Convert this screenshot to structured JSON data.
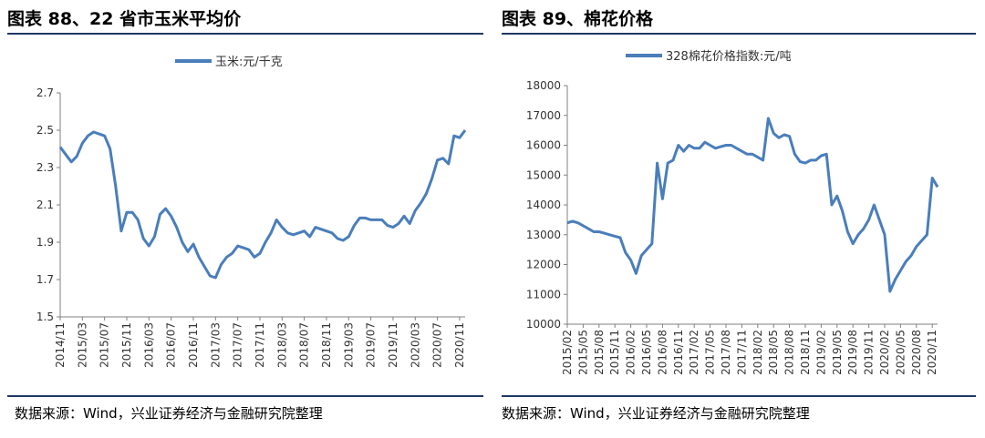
{
  "charts": [
    {
      "figure_title": "图表 88、22 省市玉米平均价",
      "source": "数据来源：Wind，兴业证券经济与金融研究院整理",
      "legend": "玉米:元/千克",
      "line_color": "#4a7ebb",
      "y_ticks": [
        "2.7",
        "2.5",
        "2.3",
        "2.1",
        "1.9",
        "1.7",
        "1.5"
      ],
      "x_ticks": [
        "2014/11",
        "2015/03",
        "2015/07",
        "2015/11",
        "2016/03",
        "2016/07",
        "2016/11",
        "2017/03",
        "2017/07",
        "2017/11",
        "2018/03",
        "2018/07",
        "2018/11",
        "2019/03",
        "2019/07",
        "2019/11",
        "2020/03",
        "2020/07",
        "2020/11"
      ]
    },
    {
      "figure_title": "图表 89、棉花价格",
      "source": "数据来源：Wind，兴业证券经济与金融研究院整理",
      "legend": "328棉花价格指数:元/吨",
      "line_color": "#4a7ebb",
      "y_ticks": [
        "18000",
        "17000",
        "16000",
        "15000",
        "14000",
        "13000",
        "12000",
        "11000",
        "10000"
      ],
      "x_ticks": [
        "2015/02",
        "2015/05",
        "2015/08",
        "2015/11",
        "2016/02",
        "2016/05",
        "2016/08",
        "2016/11",
        "2017/02",
        "2017/05",
        "2017/08",
        "2017/11",
        "2018/02",
        "2018/05",
        "2018/08",
        "2018/11",
        "2019/02",
        "2019/05",
        "2019/08",
        "2019/11",
        "2020/02",
        "2020/05",
        "2020/08",
        "2020/11"
      ]
    }
  ],
  "chart_data": [
    {
      "type": "line",
      "title": "图表 88、22 省市玉米平均价",
      "xlabel": "",
      "ylabel": "",
      "ylim": [
        1.5,
        2.7
      ],
      "grid": false,
      "legend_position": "top-center",
      "series": [
        {
          "name": "玉米:元/千克",
          "x": [
            "2014-11-01",
            "2014-12-01",
            "2015-01-01",
            "2015-02-01",
            "2015-03-01",
            "2015-04-01",
            "2015-05-01",
            "2015-06-01",
            "2015-07-01",
            "2015-08-01",
            "2015-09-01",
            "2015-10-01",
            "2015-11-01",
            "2015-12-01",
            "2016-01-01",
            "2016-02-01",
            "2016-03-01",
            "2016-04-01",
            "2016-05-01",
            "2016-06-01",
            "2016-07-01",
            "2016-08-01",
            "2016-09-01",
            "2016-10-01",
            "2016-11-01",
            "2016-12-01",
            "2017-01-01",
            "2017-02-01",
            "2017-03-01",
            "2017-04-01",
            "2017-05-01",
            "2017-06-01",
            "2017-07-01",
            "2017-08-01",
            "2017-09-01",
            "2017-10-01",
            "2017-11-01",
            "2017-12-01",
            "2018-01-01",
            "2018-02-01",
            "2018-03-01",
            "2018-04-01",
            "2018-05-01",
            "2018-06-01",
            "2018-07-01",
            "2018-08-01",
            "2018-09-01",
            "2018-10-01",
            "2018-11-01",
            "2018-12-01",
            "2019-01-01",
            "2019-02-01",
            "2019-03-01",
            "2019-04-01",
            "2019-05-01",
            "2019-06-01",
            "2019-07-01",
            "2019-08-01",
            "2019-09-01",
            "2019-10-01",
            "2019-11-01",
            "2019-12-01",
            "2020-01-01",
            "2020-02-01",
            "2020-03-01",
            "2020-04-01",
            "2020-05-01",
            "2020-06-01",
            "2020-07-01",
            "2020-08-01",
            "2020-09-01",
            "2020-10-01",
            "2020-11-01",
            "2020-12-01"
          ],
          "values": [
            2.41,
            2.37,
            2.33,
            2.36,
            2.43,
            2.47,
            2.49,
            2.48,
            2.47,
            2.4,
            2.2,
            1.96,
            2.06,
            2.06,
            2.02,
            1.92,
            1.88,
            1.93,
            2.05,
            2.08,
            2.04,
            1.98,
            1.9,
            1.85,
            1.89,
            1.82,
            1.77,
            1.72,
            1.71,
            1.78,
            1.82,
            1.84,
            1.88,
            1.87,
            1.86,
            1.82,
            1.84,
            1.9,
            1.95,
            2.02,
            1.98,
            1.95,
            1.94,
            1.95,
            1.96,
            1.93,
            1.98,
            1.97,
            1.96,
            1.95,
            1.92,
            1.91,
            1.93,
            1.99,
            2.03,
            2.03,
            2.02,
            2.02,
            2.02,
            1.99,
            1.98,
            2.0,
            2.04,
            2.0,
            2.07,
            2.11,
            2.16,
            2.24,
            2.34,
            2.35,
            2.32,
            2.47,
            2.46,
            2.5
          ]
        }
      ]
    },
    {
      "type": "line",
      "title": "图表 89、棉花价格",
      "xlabel": "",
      "ylabel": "",
      "ylim": [
        10000,
        18000
      ],
      "grid": false,
      "legend_position": "top-center",
      "series": [
        {
          "name": "328棉花价格指数:元/吨",
          "x": [
            "2015-02-01",
            "2015-03-01",
            "2015-04-01",
            "2015-05-01",
            "2015-06-01",
            "2015-07-01",
            "2015-08-01",
            "2015-09-01",
            "2015-10-01",
            "2015-11-01",
            "2015-12-01",
            "2016-01-01",
            "2016-02-01",
            "2016-03-01",
            "2016-04-01",
            "2016-05-01",
            "2016-06-01",
            "2016-07-01",
            "2016-08-01",
            "2016-09-01",
            "2016-10-01",
            "2016-11-01",
            "2016-12-01",
            "2017-01-01",
            "2017-02-01",
            "2017-03-01",
            "2017-04-01",
            "2017-05-01",
            "2017-06-01",
            "2017-07-01",
            "2017-08-01",
            "2017-09-01",
            "2017-10-01",
            "2017-11-01",
            "2017-12-01",
            "2018-01-01",
            "2018-02-01",
            "2018-03-01",
            "2018-04-01",
            "2018-05-01",
            "2018-06-01",
            "2018-07-01",
            "2018-08-01",
            "2018-09-01",
            "2018-10-01",
            "2018-11-01",
            "2018-12-01",
            "2019-01-01",
            "2019-02-01",
            "2019-03-01",
            "2019-04-01",
            "2019-05-01",
            "2019-06-01",
            "2019-07-01",
            "2019-08-01",
            "2019-09-01",
            "2019-10-01",
            "2019-11-01",
            "2019-12-01",
            "2020-01-01",
            "2020-02-01",
            "2020-03-01",
            "2020-04-01",
            "2020-05-01",
            "2020-06-01",
            "2020-07-01",
            "2020-08-01",
            "2020-09-01",
            "2020-10-01",
            "2020-11-01",
            "2020-12-01"
          ],
          "values": [
            13400,
            13450,
            13400,
            13300,
            13200,
            13100,
            13100,
            13050,
            13000,
            12950,
            12900,
            12400,
            12150,
            11700,
            12300,
            12500,
            12700,
            15400,
            14200,
            15400,
            15500,
            16000,
            15800,
            16000,
            15900,
            15900,
            16100,
            16000,
            15900,
            15950,
            16000,
            16000,
            15900,
            15800,
            15700,
            15700,
            15600,
            15500,
            16900,
            16400,
            16250,
            16350,
            16300,
            15700,
            15450,
            15400,
            15500,
            15500,
            15650,
            15700,
            14000,
            14300,
            13800,
            13100,
            12700,
            13000,
            13200,
            13500,
            14000,
            13500,
            13000,
            11100,
            11500,
            11800,
            12100,
            12300,
            12600,
            12800,
            13000,
            14900,
            14600
          ]
        }
      ]
    }
  ]
}
